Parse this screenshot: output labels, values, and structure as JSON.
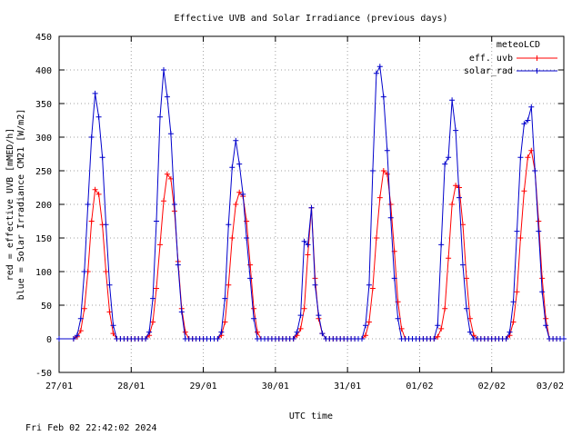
{
  "chart_data": {
    "type": "line",
    "title": "Effective UVB and Solar Irradiance (previous days)",
    "xlabel": "UTC time",
    "ylabel_lines": [
      "red  = effective UVB [mMED/h]",
      "blue = Solar Irradiance CM21 [W/m2]"
    ],
    "xlim": [
      0,
      7
    ],
    "ylim": [
      -50,
      450
    ],
    "yticks": [
      -50,
      0,
      50,
      100,
      150,
      200,
      250,
      300,
      350,
      400,
      450
    ],
    "xtick_labels": [
      "27/01",
      "28/01",
      "29/01",
      "30/01",
      "31/01",
      "01/02",
      "02/02",
      "03/02"
    ],
    "grid": true,
    "legend": {
      "title": "meteoLCD",
      "position": "top-right"
    },
    "series": [
      {
        "name": "eff. uvb",
        "color": "#ff0000",
        "x": [
          0.2,
          0.25,
          0.3,
          0.35,
          0.4,
          0.45,
          0.5,
          0.55,
          0.6,
          0.65,
          0.7,
          0.75,
          0.8,
          1.2,
          1.25,
          1.3,
          1.35,
          1.4,
          1.45,
          1.5,
          1.55,
          1.6,
          1.65,
          1.7,
          1.75,
          1.8,
          2.2,
          2.25,
          2.3,
          2.35,
          2.4,
          2.45,
          2.5,
          2.55,
          2.6,
          2.65,
          2.7,
          2.75,
          2.8,
          3.25,
          3.3,
          3.35,
          3.4,
          3.45,
          3.5,
          3.55,
          3.6,
          3.65,
          3.7,
          4.2,
          4.25,
          4.3,
          4.35,
          4.4,
          4.45,
          4.5,
          4.55,
          4.6,
          4.65,
          4.7,
          4.75,
          4.8,
          5.2,
          5.25,
          5.3,
          5.35,
          5.4,
          5.45,
          5.5,
          5.55,
          5.6,
          5.65,
          5.7,
          5.75,
          5.8,
          6.2,
          6.25,
          6.3,
          6.35,
          6.4,
          6.45,
          6.5,
          6.55,
          6.6,
          6.65,
          6.7,
          6.75,
          6.8
        ],
        "values": [
          0,
          3,
          12,
          45,
          100,
          175,
          222,
          215,
          170,
          100,
          40,
          8,
          0,
          0,
          5,
          25,
          75,
          140,
          205,
          245,
          238,
          190,
          115,
          45,
          10,
          0,
          0,
          5,
          25,
          80,
          150,
          200,
          218,
          212,
          175,
          110,
          45,
          10,
          0,
          0,
          5,
          15,
          45,
          125,
          195,
          90,
          30,
          8,
          0,
          0,
          5,
          25,
          75,
          150,
          210,
          250,
          245,
          200,
          130,
          55,
          15,
          0,
          0,
          3,
          15,
          45,
          120,
          200,
          228,
          225,
          170,
          90,
          30,
          5,
          0,
          0,
          5,
          25,
          70,
          150,
          220,
          270,
          280,
          250,
          175,
          90,
          30,
          0
        ]
      },
      {
        "name": "solar_rad",
        "color": "#0000cc",
        "x": [
          0.2,
          0.25,
          0.3,
          0.35,
          0.4,
          0.45,
          0.5,
          0.55,
          0.6,
          0.65,
          0.7,
          0.75,
          0.8,
          1.2,
          1.25,
          1.3,
          1.35,
          1.4,
          1.45,
          1.5,
          1.55,
          1.6,
          1.65,
          1.7,
          1.75,
          1.8,
          2.2,
          2.25,
          2.3,
          2.35,
          2.4,
          2.45,
          2.5,
          2.55,
          2.6,
          2.65,
          2.7,
          2.75,
          2.8,
          3.25,
          3.3,
          3.35,
          3.4,
          3.45,
          3.5,
          3.55,
          3.6,
          3.65,
          3.7,
          4.2,
          4.25,
          4.3,
          4.35,
          4.4,
          4.45,
          4.5,
          4.55,
          4.6,
          4.65,
          4.7,
          4.75,
          4.8,
          5.2,
          5.25,
          5.3,
          5.35,
          5.4,
          5.45,
          5.5,
          5.55,
          5.6,
          5.65,
          5.7,
          5.75,
          5.8,
          6.2,
          6.25,
          6.3,
          6.35,
          6.4,
          6.45,
          6.5,
          6.55,
          6.6,
          6.65,
          6.7,
          6.75,
          6.8
        ],
        "values": [
          0,
          5,
          30,
          100,
          200,
          300,
          365,
          330,
          270,
          170,
          80,
          20,
          0,
          0,
          10,
          60,
          175,
          330,
          400,
          360,
          305,
          200,
          110,
          40,
          0,
          0,
          0,
          10,
          60,
          170,
          255,
          295,
          260,
          215,
          150,
          90,
          30,
          0,
          0,
          0,
          10,
          35,
          145,
          140,
          195,
          80,
          35,
          8,
          0,
          0,
          20,
          80,
          250,
          395,
          405,
          360,
          280,
          180,
          90,
          30,
          0,
          0,
          0,
          20,
          140,
          260,
          270,
          355,
          310,
          210,
          110,
          45,
          10,
          0,
          0,
          0,
          10,
          55,
          160,
          270,
          320,
          325,
          345,
          250,
          160,
          70,
          20,
          0
        ]
      }
    ]
  },
  "footer": {
    "timestamp": "Fri Feb 02 22:42:02 2024"
  }
}
